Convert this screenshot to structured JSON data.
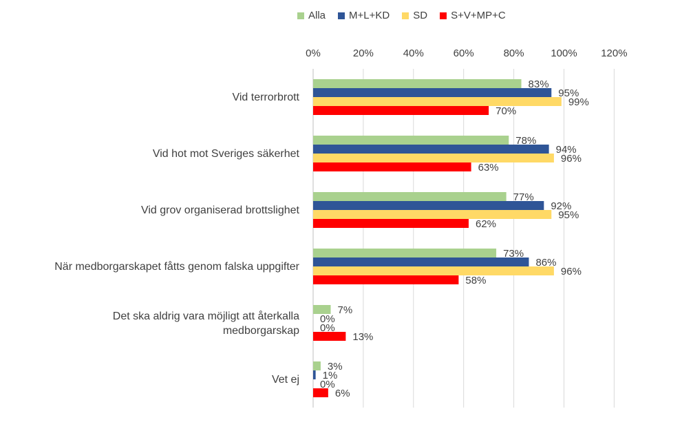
{
  "chart_data": {
    "type": "bar",
    "orientation": "horizontal",
    "title": "",
    "xlabel": "",
    "ylabel": "",
    "xlim": [
      0,
      120
    ],
    "x_ticks": [
      "0%",
      "20%",
      "40%",
      "60%",
      "80%",
      "100%",
      "120%"
    ],
    "x_axis_position": "top",
    "grid": true,
    "legend_position": "top",
    "categories": [
      "Vid terrorbrott",
      "Vid hot mot Sveriges säkerhet",
      "Vid grov organiserad brottslighet",
      "När medborgarskapet fåtts genom falska uppgifter",
      "Det ska aldrig vara möjligt att återkalla medborgarskap",
      "Vet ej"
    ],
    "series": [
      {
        "name": "Alla",
        "color": "#A9D18E",
        "values": [
          83,
          78,
          77,
          73,
          7,
          3
        ]
      },
      {
        "name": "M+L+KD",
        "color": "#2F5597",
        "values": [
          95,
          94,
          92,
          86,
          0,
          1
        ]
      },
      {
        "name": "SD",
        "color": "#FFD966",
        "values": [
          99,
          96,
          95,
          96,
          0,
          0
        ]
      },
      {
        "name": "S+V+MP+C",
        "color": "#FF0000",
        "values": [
          70,
          63,
          62,
          58,
          13,
          6
        ]
      }
    ]
  }
}
